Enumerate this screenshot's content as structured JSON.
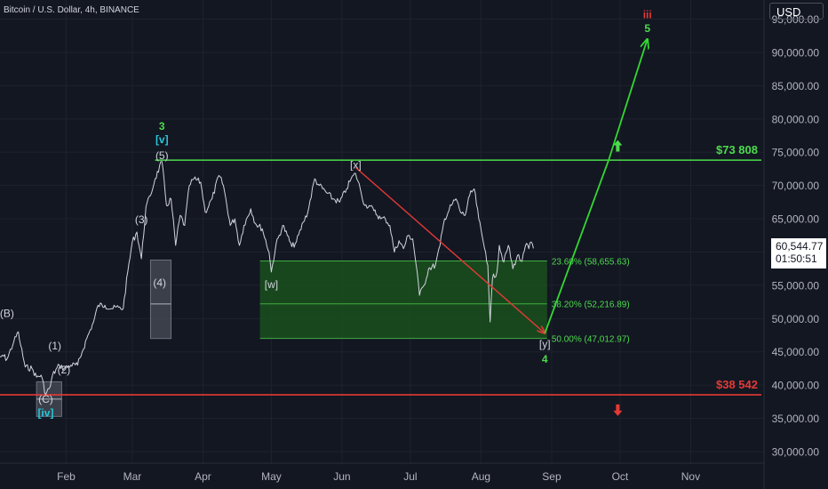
{
  "header": {
    "symbol": "Bitcoin / U.S. Dollar, 4h, BINANCE"
  },
  "currency_button": "USD",
  "last_price": {
    "price": "60,544.77",
    "countdown": "01:50:51"
  },
  "colors": {
    "background": "#131722",
    "grid": "#1e222d",
    "price_line": "#d1d4dc",
    "resistance": "#4cdb4c",
    "support": "#e53935",
    "zone_fill": "#1a4d1e",
    "zone_line": "#3fae3f",
    "projection": "#34d832",
    "decline": "#e53935",
    "wave_label": "#d1d4dc",
    "green_label": "#4cdb4c",
    "cyan_label": "#26c6da",
    "red_label": "#e53935",
    "gray_box": "#6e7180"
  },
  "chart_data": {
    "type": "line",
    "title": "",
    "x_ticks": [
      "Feb",
      "Mar",
      "Apr",
      "May",
      "Jun",
      "Jul",
      "Aug",
      "Sep",
      "Oct",
      "Nov"
    ],
    "y_ticks": [
      "95,000.00",
      "90,000.00",
      "85,000.00",
      "80,000.00",
      "75,000.00",
      "70,000.00",
      "65,000.00",
      "60,000.00",
      "55,000.00",
      "50,000.00",
      "45,000.00",
      "40,000.00",
      "35,000.00",
      "30,000.00"
    ],
    "y_tick_values": [
      95000,
      90000,
      85000,
      80000,
      75000,
      70000,
      65000,
      60000,
      55000,
      50000,
      45000,
      40000,
      35000,
      30000
    ],
    "ylim": [
      28000,
      96500
    ],
    "xlim": [
      "2024-01-01",
      "2024-12-10"
    ],
    "grid": true,
    "series": [
      {
        "values": [
          [
            "2024-01-01",
            43000
          ],
          [
            "2024-01-04",
            44500
          ],
          [
            "2024-01-06",
            43900
          ],
          [
            "2024-01-09",
            46500
          ],
          [
            "2024-01-11",
            48000
          ],
          [
            "2024-01-12",
            46000
          ],
          [
            "2024-01-14",
            42700
          ],
          [
            "2024-01-17",
            42500
          ],
          [
            "2024-01-19",
            41200
          ],
          [
            "2024-01-21",
            41500
          ],
          [
            "2024-01-23",
            38600
          ],
          [
            "2024-01-25",
            39800
          ],
          [
            "2024-01-26",
            41500
          ],
          [
            "2024-01-29",
            43000
          ],
          [
            "2024-01-31",
            42500
          ],
          [
            "2024-02-03",
            43000
          ],
          [
            "2024-02-06",
            43000
          ],
          [
            "2024-02-08",
            45000
          ],
          [
            "2024-02-10",
            47000
          ],
          [
            "2024-02-13",
            49500
          ],
          [
            "2024-02-15",
            52000
          ],
          [
            "2024-02-18",
            52000
          ],
          [
            "2024-02-21",
            51500
          ],
          [
            "2024-02-24",
            51700
          ],
          [
            "2024-02-26",
            51500
          ],
          [
            "2024-02-28",
            57000
          ],
          [
            "2024-03-01",
            61500
          ],
          [
            "2024-03-03",
            63000
          ],
          [
            "2024-03-05",
            59000
          ],
          [
            "2024-03-07",
            66800
          ],
          [
            "2024-03-09",
            68500
          ],
          [
            "2024-03-11",
            71000
          ],
          [
            "2024-03-14",
            73600
          ],
          [
            "2024-03-16",
            67000
          ],
          [
            "2024-03-18",
            68000
          ],
          [
            "2024-03-20",
            61000
          ],
          [
            "2024-03-22",
            65500
          ],
          [
            "2024-03-24",
            64000
          ],
          [
            "2024-03-26",
            70000
          ],
          [
            "2024-03-28",
            71000
          ],
          [
            "2024-03-31",
            70500
          ],
          [
            "2024-04-02",
            66000
          ],
          [
            "2024-04-05",
            68000
          ],
          [
            "2024-04-08",
            71500
          ],
          [
            "2024-04-10",
            70000
          ],
          [
            "2024-04-13",
            64000
          ],
          [
            "2024-04-15",
            65000
          ],
          [
            "2024-04-17",
            61000
          ],
          [
            "2024-04-19",
            64000
          ],
          [
            "2024-04-22",
            66500
          ],
          [
            "2024-04-24",
            64300
          ],
          [
            "2024-04-27",
            63500
          ],
          [
            "2024-04-30",
            60000
          ],
          [
            "2024-05-01",
            57000
          ],
          [
            "2024-05-03",
            61000
          ],
          [
            "2024-05-06",
            64000
          ],
          [
            "2024-05-08",
            62500
          ],
          [
            "2024-05-10",
            60800
          ],
          [
            "2024-05-12",
            61500
          ],
          [
            "2024-05-15",
            64500
          ],
          [
            "2024-05-17",
            66000
          ],
          [
            "2024-05-20",
            71000
          ],
          [
            "2024-05-22",
            70000
          ],
          [
            "2024-05-25",
            69000
          ],
          [
            "2024-05-28",
            68000
          ],
          [
            "2024-05-31",
            67500
          ],
          [
            "2024-06-03",
            69500
          ],
          [
            "2024-06-05",
            71000
          ],
          [
            "2024-06-07",
            71800
          ],
          [
            "2024-06-09",
            69500
          ],
          [
            "2024-06-11",
            67000
          ],
          [
            "2024-06-13",
            67000
          ],
          [
            "2024-06-15",
            66200
          ],
          [
            "2024-06-18",
            65000
          ],
          [
            "2024-06-20",
            65000
          ],
          [
            "2024-06-22",
            64000
          ],
          [
            "2024-06-24",
            60000
          ],
          [
            "2024-06-26",
            61700
          ],
          [
            "2024-06-28",
            60500
          ],
          [
            "2024-06-30",
            62500
          ],
          [
            "2024-07-02",
            62000
          ],
          [
            "2024-07-04",
            57000
          ],
          [
            "2024-07-05",
            53500
          ],
          [
            "2024-07-07",
            55000
          ],
          [
            "2024-07-09",
            57500
          ],
          [
            "2024-07-12",
            58000
          ],
          [
            "2024-07-14",
            61000
          ],
          [
            "2024-07-16",
            65000
          ],
          [
            "2024-07-19",
            67000
          ],
          [
            "2024-07-21",
            68000
          ],
          [
            "2024-07-23",
            66000
          ],
          [
            "2024-07-25",
            65500
          ],
          [
            "2024-07-27",
            68500
          ],
          [
            "2024-07-29",
            69500
          ],
          [
            "2024-07-31",
            65000
          ],
          [
            "2024-08-02",
            61500
          ],
          [
            "2024-08-03",
            60000
          ],
          [
            "2024-08-04",
            58000
          ],
          [
            "2024-08-05",
            49500
          ],
          [
            "2024-08-06",
            56000
          ],
          [
            "2024-08-08",
            57000
          ],
          [
            "2024-08-09",
            61000
          ],
          [
            "2024-08-11",
            58500
          ],
          [
            "2024-08-13",
            61000
          ],
          [
            "2024-08-15",
            57500
          ],
          [
            "2024-08-17",
            59500
          ],
          [
            "2024-08-19",
            58600
          ],
          [
            "2024-08-21",
            61300
          ],
          [
            "2024-08-22",
            60500
          ],
          [
            "2024-08-23",
            61500
          ],
          [
            "2024-08-24",
            60544.77
          ]
        ]
      }
    ],
    "levels": [
      {
        "label": "$73 808",
        "value": 73808,
        "color": "#4cdb4c",
        "from": "2024-03-11"
      },
      {
        "label": "$38 542",
        "value": 38542,
        "color": "#e53935",
        "from": "2024-01-01"
      }
    ],
    "fib_zone": {
      "from": "2024-04-26",
      "to": "2024-08-30",
      "levels": [
        {
          "label": "23.60% (58,655.63)",
          "value": 58655.63
        },
        {
          "label": "38.20% (52,216.89)",
          "value": 52216.89
        },
        {
          "label": "50.00% (47,012.97)",
          "value": 47012.97
        }
      ]
    },
    "gray_boxes": [
      {
        "from": "2024-03-09",
        "to": "2024-03-18",
        "top": 58800,
        "bottom": 47000,
        "mid": 52200
      },
      {
        "from": "2024-01-19",
        "to": "2024-01-30",
        "top": 40500,
        "bottom": 35300,
        "mid": 37900
      }
    ],
    "arrows": [
      {
        "kind": "decline",
        "points": [
          [
            "2024-06-07",
            72700
          ],
          [
            "2024-08-29",
            47800
          ]
        ]
      },
      {
        "kind": "projection",
        "points": [
          [
            "2024-08-29",
            47800
          ],
          [
            "2024-09-26",
            73808
          ],
          [
            "2024-10-13",
            92000
          ]
        ]
      }
    ],
    "annotations": [
      {
        "text": "(B)",
        "x": "2024-01-06",
        "y": 50800,
        "tone": "white"
      },
      {
        "text": "(1)",
        "x": "2024-01-27",
        "y": 45900,
        "tone": "white"
      },
      {
        "text": "(2)",
        "x": "2024-01-31",
        "y": 42300,
        "tone": "white"
      },
      {
        "text": "(C)",
        "x": "2024-01-23",
        "y": 37900,
        "tone": "white"
      },
      {
        "text": "[iv]",
        "x": "2024-01-23",
        "y": 35800,
        "tone": "cyan"
      },
      {
        "text": "(3)",
        "x": "2024-03-05",
        "y": 64900,
        "tone": "white"
      },
      {
        "text": "(4)",
        "x": "2024-03-13",
        "y": 55400,
        "tone": "white"
      },
      {
        "text": "(5)",
        "x": "2024-03-14",
        "y": 74500,
        "tone": "white"
      },
      {
        "text": "[v]",
        "x": "2024-03-14",
        "y": 76900,
        "tone": "cyan"
      },
      {
        "text": "3",
        "x": "2024-03-14",
        "y": 78900,
        "tone": "green"
      },
      {
        "text": "[w]",
        "x": "2024-05-01",
        "y": 55100,
        "tone": "white"
      },
      {
        "text": "[x]",
        "x": "2024-06-07",
        "y": 73100,
        "tone": "white"
      },
      {
        "text": "[y]",
        "x": "2024-08-29",
        "y": 46200,
        "tone": "white"
      },
      {
        "text": "4",
        "x": "2024-08-29",
        "y": 43900,
        "tone": "green"
      },
      {
        "text": "5",
        "x": "2024-10-13",
        "y": 93600,
        "tone": "green"
      },
      {
        "text": "iii",
        "x": "2024-10-13",
        "y": 95700,
        "tone": "red"
      }
    ],
    "markers": [
      {
        "kind": "up-arrow",
        "x": "2024-09-30",
        "y": 75900,
        "color": "#4cdb4c"
      },
      {
        "kind": "down-arrow",
        "x": "2024-09-30",
        "y": 36300,
        "color": "#e53935"
      }
    ]
  }
}
